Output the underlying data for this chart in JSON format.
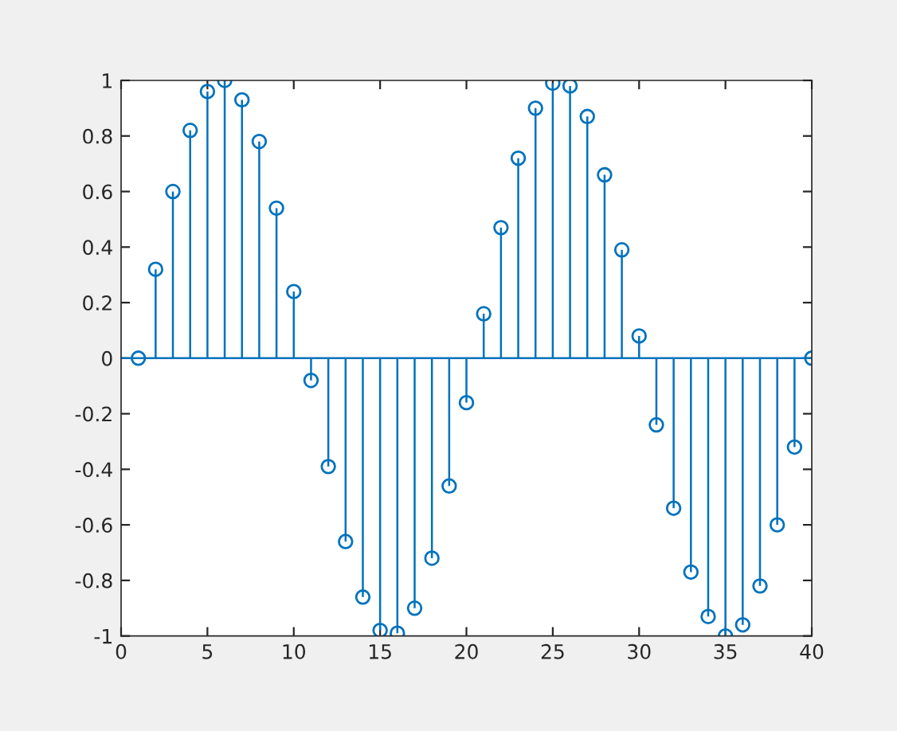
{
  "chart_data": {
    "type": "lollipop",
    "x": [
      1,
      2,
      3,
      4,
      5,
      6,
      7,
      8,
      9,
      10,
      11,
      12,
      13,
      14,
      15,
      16,
      17,
      18,
      19,
      20,
      21,
      22,
      23,
      24,
      25,
      26,
      27,
      28,
      29,
      30,
      31,
      32,
      33,
      34,
      35,
      36,
      37,
      38,
      39,
      40
    ],
    "series": [
      {
        "color": "#0072bd",
        "values": [
          0,
          0.32,
          0.6,
          0.82,
          0.96,
          1.0,
          0.93,
          0.78,
          0.54,
          0.24,
          -0.08,
          -0.39,
          -0.66,
          -0.86,
          -0.98,
          -0.99,
          -0.9,
          -0.72,
          -0.46,
          -0.16,
          0.16,
          0.47,
          0.72,
          0.9,
          0.99,
          0.98,
          0.87,
          0.66,
          0.39,
          0.08,
          -0.24,
          -0.54,
          -0.77,
          -0.93,
          -1.0,
          -0.96,
          -0.82,
          -0.6,
          -0.32,
          0
        ]
      }
    ],
    "xlim": [
      0,
      40
    ],
    "xticks": [
      0,
      5,
      10,
      15,
      20,
      25,
      30,
      35,
      40
    ],
    "ylim": [
      -1,
      1
    ],
    "yticks": [
      -1,
      -0.8,
      -0.6,
      -0.4,
      -0.2,
      0,
      0.2,
      0.4,
      0.6,
      0.8,
      1
    ],
    "ref_lines": [
      {
        "axis": "y",
        "value": 0,
        "color": "#0072bd"
      }
    ],
    "marker": "circle",
    "grid": false
  }
}
